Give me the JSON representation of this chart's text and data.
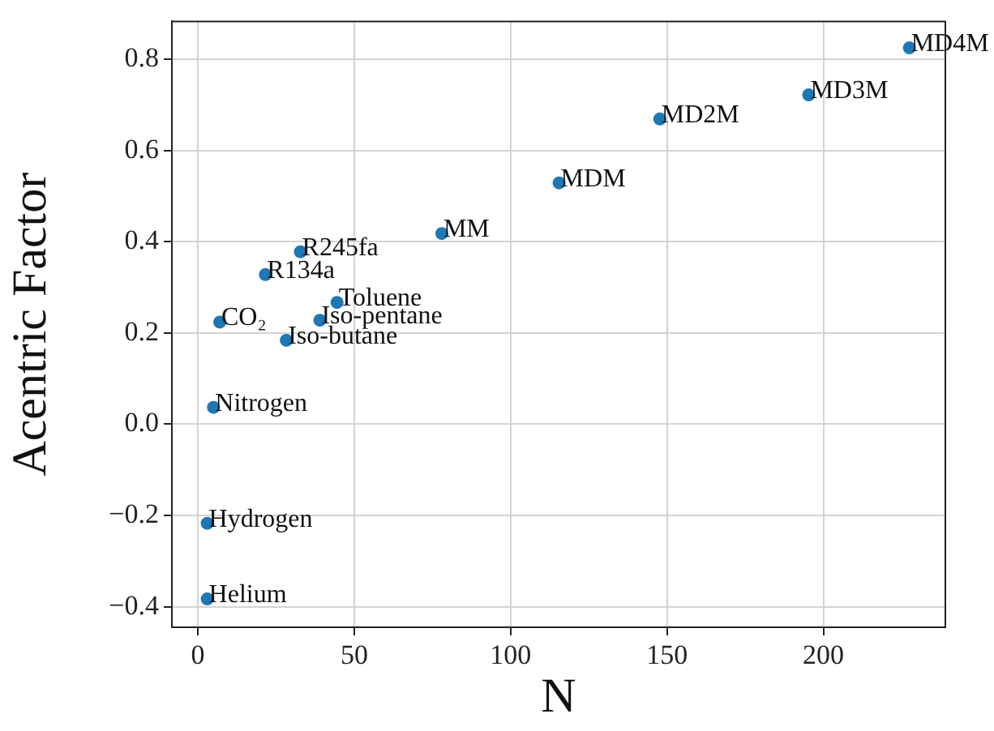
{
  "chart_data": {
    "type": "scatter",
    "xlabel": "N",
    "ylabel": "Acentric Factor",
    "x": [
      3,
      3,
      5,
      7,
      21.6,
      32.8,
      28.3,
      39,
      44.5,
      78,
      115.5,
      147.7,
      195.3,
      227.5
    ],
    "series": [
      {
        "color": "#1f77b4",
        "values": [
          -0.383,
          -0.217,
          0.037,
          0.224,
          0.328,
          0.378,
          0.184,
          0.228,
          0.267,
          0.418,
          0.529,
          0.669,
          0.722,
          0.825
        ]
      }
    ],
    "annotations": [
      {
        "text": "Helium",
        "x": 3,
        "y": -0.383
      },
      {
        "text": "Hydrogen",
        "x": 3,
        "y": -0.217
      },
      {
        "text": "Nitrogen",
        "x": 5,
        "y": 0.037
      },
      {
        "text": "CO₂",
        "x": 7,
        "y": 0.224
      },
      {
        "text": "R134a",
        "x": 21.6,
        "y": 0.328
      },
      {
        "text": "R245fa",
        "x": 32.8,
        "y": 0.378
      },
      {
        "text": "Iso-butane",
        "x": 28.3,
        "y": 0.184
      },
      {
        "text": "Iso-pentane",
        "x": 39,
        "y": 0.228
      },
      {
        "text": "Toluene",
        "x": 44.5,
        "y": 0.267
      },
      {
        "text": "MM",
        "x": 78,
        "y": 0.418
      },
      {
        "text": "MDM",
        "x": 115.5,
        "y": 0.529
      },
      {
        "text": "MD2M",
        "x": 147.7,
        "y": 0.669
      },
      {
        "text": "MD3M",
        "x": 195.3,
        "y": 0.722
      },
      {
        "text": "MD4M",
        "x": 227.5,
        "y": 0.825
      }
    ],
    "xlim": [
      -8.3,
      239
    ],
    "ylim": [
      -0.445,
      0.883
    ],
    "xticks": [
      0,
      50,
      100,
      150,
      200
    ],
    "yticks": [
      {
        "value": -0.4,
        "label": "−0.4"
      },
      {
        "value": -0.2,
        "label": "−0.2"
      },
      {
        "value": 0,
        "label": "0.0"
      },
      {
        "value": 0.2,
        "label": "0.2"
      },
      {
        "value": 0.4,
        "label": "0.4"
      },
      {
        "value": 0.6,
        "label": "0.6"
      },
      {
        "value": 0.8,
        "label": "0.8"
      }
    ],
    "grid": true,
    "legend": false,
    "marker": "circle"
  }
}
